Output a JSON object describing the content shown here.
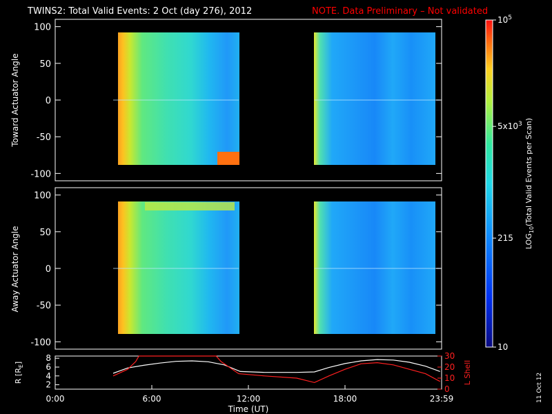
{
  "title": "TWINS2: Total Valid Events:  2 Oct (day 276), 2012",
  "note": "NOTE. Data Preliminary – Not validated",
  "stamp": "11 Oct 12",
  "colors": {
    "note": "#ff0000",
    "axis": "#ffffff",
    "background": "#000000",
    "rshell": "#ffffff",
    "lshell": "#ff2020"
  },
  "chart_data": [
    {
      "type": "heatmap",
      "ylabel": "Toward Actuator Angle",
      "ylim": [
        -110,
        110
      ],
      "yticks": [
        100,
        50,
        0,
        -50,
        -100
      ],
      "xlim": [
        0,
        24
      ],
      "data_segments": [
        {
          "start_hour": 3.6,
          "end_hour": 11.4,
          "angle_range": [
            -88,
            90
          ]
        },
        {
          "start_hour": 16.1,
          "end_hour": 23.9,
          "angle_range": [
            -88,
            90
          ]
        }
      ]
    },
    {
      "type": "heatmap",
      "ylabel": "Away Actuator Angle",
      "ylim": [
        -110,
        110
      ],
      "yticks": [
        100,
        50,
        0,
        -50,
        -100
      ],
      "xlim": [
        0,
        24
      ],
      "data_segments": [
        {
          "start_hour": 3.6,
          "end_hour": 11.4,
          "angle_range": [
            -88,
            90
          ]
        },
        {
          "start_hour": 16.1,
          "end_hour": 23.9,
          "angle_range": [
            -88,
            90
          ]
        }
      ]
    },
    {
      "type": "line",
      "xlabel": "Time (UT)",
      "xticks": [
        "0:00",
        "6:00",
        "12:00",
        "18:00",
        "23:59"
      ],
      "xtick_hours": [
        0,
        6,
        12,
        18,
        24
      ],
      "ylabel_left_main": "R [R",
      "ylabel_left_sub": "E",
      "ylabel_left_end": "]",
      "ylim_left": [
        1,
        8.5
      ],
      "yticks_left": [
        8,
        6,
        4,
        2
      ],
      "ylabel_right": "L Shell",
      "ylim_right": [
        0,
        30
      ],
      "yticks_right": [
        30,
        20,
        10,
        0
      ],
      "series": [
        {
          "axis": "left",
          "x": [
            3.6,
            4.5,
            5.5,
            6.5,
            7.5,
            8.5,
            9.5,
            10.5,
            11.5,
            13,
            15,
            16.1,
            17,
            18,
            19,
            20,
            21,
            22,
            23,
            23.9
          ],
          "y": [
            4.6,
            5.8,
            6.4,
            6.9,
            7.3,
            7.4,
            7.2,
            6.5,
            5.0,
            4.8,
            4.8,
            4.9,
            5.9,
            6.8,
            7.4,
            7.7,
            7.6,
            7.1,
            6.2,
            5.0
          ]
        },
        {
          "axis": "right",
          "x": [
            3.6,
            4.5,
            5.0,
            5.2,
            10.0,
            10.3,
            11.4,
            13,
            15,
            16.1,
            17,
            18,
            19,
            20,
            21,
            22,
            23,
            23.9
          ],
          "y": [
            12,
            18,
            25,
            32,
            32,
            25,
            14,
            12,
            10,
            6,
            12,
            18,
            23,
            24,
            22,
            18,
            14,
            7
          ]
        }
      ]
    }
  ],
  "colorbar": {
    "label_main": "LOG",
    "label_sub": "10",
    "label_rest": "(Total Valid Events per Scan)",
    "ticks": [
      {
        "base": "10",
        "exp": "5",
        "value": 100000
      },
      {
        "base": "5x10",
        "exp": "3",
        "value": 5000
      },
      {
        "base": "215",
        "exp": "",
        "value": 215
      },
      {
        "base": "10",
        "exp": "",
        "value": 10
      }
    ],
    "range": [
      10,
      100000
    ]
  }
}
